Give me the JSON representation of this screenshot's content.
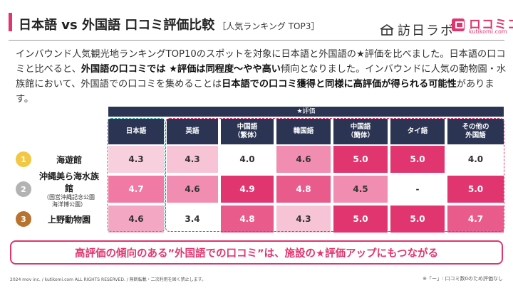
{
  "header": {
    "title": "日本語 vs 外国語 口コミ評価比較",
    "subtitle": "［人気ランキング TOP3］",
    "brand_houjin": "訪日ラボ",
    "brand_kutikomi": "ロコミコム",
    "brand_kutikomi_url": "kutikomi.com"
  },
  "intro": {
    "p1": "インバウンド人気観光地ランキングTOP10のスポットを対象に日本語と外国語の★評価を比べました。日本語の口コミと比べると、",
    "b1": "外国語の口コミでは ★評価は同程度〜やや高い",
    "p2": "傾向となりました。インバウンドに人気の動物園・水族館において、外国語での口コミを集めることは",
    "b2": "日本語での口コミ獲得と同様に高評価が得られる可能性",
    "p3": "があります。"
  },
  "callout": "高評価の傾向のある”外国語での口コミ”は、施設の★評価アップにもつながる",
  "footer": {
    "copyright": "2024 mov inc. / kutikomi.com ALL RIGHTS RESERVED. / 無断転載・二次利用を固く禁止します。",
    "note": "※「ー」: 口コミ数0のため評価なし"
  },
  "colors": {
    "navy": "#2b3553",
    "accent": "#e0356f",
    "teal": "#3aa7a7",
    "rank_gold": "#f2c744",
    "rank_silver": "#b3b3b3",
    "rank_bronze": "#b8732e"
  },
  "chart_data": {
    "type": "table",
    "title": "★評価",
    "columns": [
      "日本語",
      "英語",
      "中国語\n（繁体）",
      "韓国語",
      "中国語\n（簡体）",
      "タイ語",
      "その他の\n外国語"
    ],
    "rows": [
      {
        "rank": "1",
        "name": "海遊館",
        "sub": "",
        "values": [
          "4.3",
          "4.3",
          "4.0",
          "4.6",
          "5.0",
          "5.0",
          "4.0"
        ]
      },
      {
        "rank": "2",
        "name": "沖縄美ら海水族館",
        "sub": "（国営沖縄記念公園\n海洋博公園）",
        "values": [
          "4.7",
          "4.6",
          "4.9",
          "4.8",
          "4.5",
          "-",
          "5.0"
        ]
      },
      {
        "rank": "3",
        "name": "上野動物園",
        "sub": "",
        "values": [
          "4.6",
          "3.4",
          "4.8",
          "4.3",
          "5.0",
          "5.0",
          "4.7"
        ]
      }
    ]
  }
}
